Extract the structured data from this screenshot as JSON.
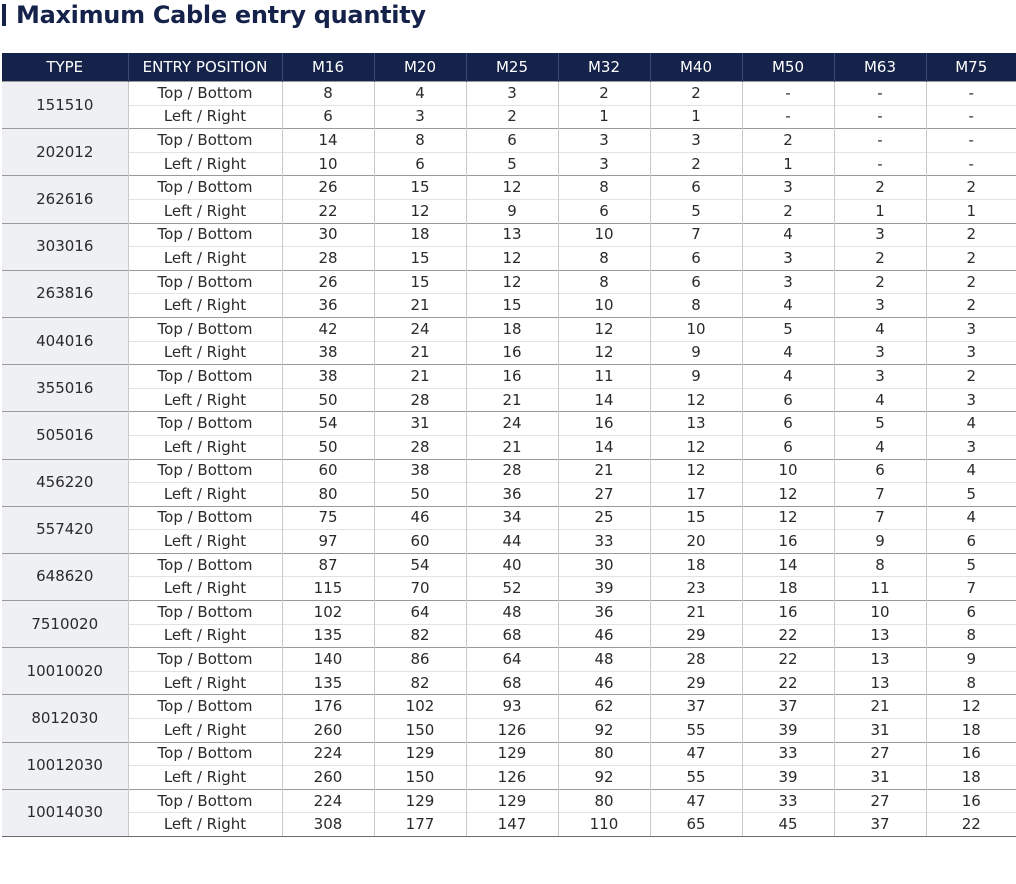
{
  "title": "Maximum Cable entry quantity",
  "headers": [
    "TYPE",
    "ENTRY POSITION",
    "M16",
    "M20",
    "M25",
    "M32",
    "M40",
    "M50",
    "M63",
    "M75"
  ],
  "rows": [
    {
      "type": "151510",
      "entries": [
        {
          "position": "Top / Bottom",
          "values": [
            "8",
            "4",
            "3",
            "2",
            "2",
            "-",
            "-",
            "-"
          ]
        },
        {
          "position": "Left / Right",
          "values": [
            "6",
            "3",
            "2",
            "1",
            "1",
            "-",
            "-",
            "-"
          ]
        }
      ]
    },
    {
      "type": "202012",
      "entries": [
        {
          "position": "Top / Bottom",
          "values": [
            "14",
            "8",
            "6",
            "3",
            "3",
            "2",
            "-",
            "-"
          ]
        },
        {
          "position": "Left / Right",
          "values": [
            "10",
            "6",
            "5",
            "3",
            "2",
            "1",
            "-",
            "-"
          ]
        }
      ]
    },
    {
      "type": "262616",
      "entries": [
        {
          "position": "Top / Bottom",
          "values": [
            "26",
            "15",
            "12",
            "8",
            "6",
            "3",
            "2",
            "2"
          ]
        },
        {
          "position": "Left / Right",
          "values": [
            "22",
            "12",
            "9",
            "6",
            "5",
            "2",
            "1",
            "1"
          ]
        }
      ]
    },
    {
      "type": "303016",
      "entries": [
        {
          "position": "Top / Bottom",
          "values": [
            "30",
            "18",
            "13",
            "10",
            "7",
            "4",
            "3",
            "2"
          ]
        },
        {
          "position": "Left / Right",
          "values": [
            "28",
            "15",
            "12",
            "8",
            "6",
            "3",
            "2",
            "2"
          ]
        }
      ]
    },
    {
      "type": "263816",
      "entries": [
        {
          "position": "Top / Bottom",
          "values": [
            "26",
            "15",
            "12",
            "8",
            "6",
            "3",
            "2",
            "2"
          ]
        },
        {
          "position": "Left / Right",
          "values": [
            "36",
            "21",
            "15",
            "10",
            "8",
            "4",
            "3",
            "2"
          ]
        }
      ]
    },
    {
      "type": "404016",
      "entries": [
        {
          "position": "Top / Bottom",
          "values": [
            "42",
            "24",
            "18",
            "12",
            "10",
            "5",
            "4",
            "3"
          ]
        },
        {
          "position": "Left / Right",
          "values": [
            "38",
            "21",
            "16",
            "12",
            "9",
            "4",
            "3",
            "3"
          ]
        }
      ]
    },
    {
      "type": "355016",
      "entries": [
        {
          "position": "Top / Bottom",
          "values": [
            "38",
            "21",
            "16",
            "11",
            "9",
            "4",
            "3",
            "2"
          ]
        },
        {
          "position": "Left / Right",
          "values": [
            "50",
            "28",
            "21",
            "14",
            "12",
            "6",
            "4",
            "3"
          ]
        }
      ]
    },
    {
      "type": "505016",
      "entries": [
        {
          "position": "Top / Bottom",
          "values": [
            "54",
            "31",
            "24",
            "16",
            "13",
            "6",
            "5",
            "4"
          ]
        },
        {
          "position": "Left / Right",
          "values": [
            "50",
            "28",
            "21",
            "14",
            "12",
            "6",
            "4",
            "3"
          ]
        }
      ]
    },
    {
      "type": "456220",
      "entries": [
        {
          "position": "Top / Bottom",
          "values": [
            "60",
            "38",
            "28",
            "21",
            "12",
            "10",
            "6",
            "4"
          ]
        },
        {
          "position": "Left / Right",
          "values": [
            "80",
            "50",
            "36",
            "27",
            "17",
            "12",
            "7",
            "5"
          ]
        }
      ]
    },
    {
      "type": "557420",
      "entries": [
        {
          "position": "Top / Bottom",
          "values": [
            "75",
            "46",
            "34",
            "25",
            "15",
            "12",
            "7",
            "4"
          ]
        },
        {
          "position": "Left / Right",
          "values": [
            "97",
            "60",
            "44",
            "33",
            "20",
            "16",
            "9",
            "6"
          ]
        }
      ]
    },
    {
      "type": "648620",
      "entries": [
        {
          "position": "Top / Bottom",
          "values": [
            "87",
            "54",
            "40",
            "30",
            "18",
            "14",
            "8",
            "5"
          ]
        },
        {
          "position": "Left / Right",
          "values": [
            "115",
            "70",
            "52",
            "39",
            "23",
            "18",
            "11",
            "7"
          ]
        }
      ]
    },
    {
      "type": "7510020",
      "entries": [
        {
          "position": "Top / Bottom",
          "values": [
            "102",
            "64",
            "48",
            "36",
            "21",
            "16",
            "10",
            "6"
          ]
        },
        {
          "position": "Left / Right",
          "values": [
            "135",
            "82",
            "68",
            "46",
            "29",
            "22",
            "13",
            "8"
          ]
        }
      ]
    },
    {
      "type": "10010020",
      "entries": [
        {
          "position": "Top / Bottom",
          "values": [
            "140",
            "86",
            "64",
            "48",
            "28",
            "22",
            "13",
            "9"
          ]
        },
        {
          "position": "Left / Right",
          "values": [
            "135",
            "82",
            "68",
            "46",
            "29",
            "22",
            "13",
            "8"
          ]
        }
      ]
    },
    {
      "type": "8012030",
      "entries": [
        {
          "position": "Top / Bottom",
          "values": [
            "176",
            "102",
            "93",
            "62",
            "37",
            "37",
            "21",
            "12"
          ]
        },
        {
          "position": "Left / Right",
          "values": [
            "260",
            "150",
            "126",
            "92",
            "55",
            "39",
            "31",
            "18"
          ]
        }
      ]
    },
    {
      "type": "10012030",
      "entries": [
        {
          "position": "Top / Bottom",
          "values": [
            "224",
            "129",
            "129",
            "80",
            "47",
            "33",
            "27",
            "16"
          ]
        },
        {
          "position": "Left / Right",
          "values": [
            "260",
            "150",
            "126",
            "92",
            "55",
            "39",
            "31",
            "18"
          ]
        }
      ]
    },
    {
      "type": "10014030",
      "entries": [
        {
          "position": "Top / Bottom",
          "values": [
            "224",
            "129",
            "129",
            "80",
            "47",
            "33",
            "27",
            "16"
          ]
        },
        {
          "position": "Left / Right",
          "values": [
            "308",
            "177",
            "147",
            "110",
            "65",
            "45",
            "37",
            "22"
          ]
        }
      ]
    }
  ],
  "colors": {
    "header_bg": "#15224a",
    "type_bg": "#eef0f3",
    "title": "#15224a"
  }
}
